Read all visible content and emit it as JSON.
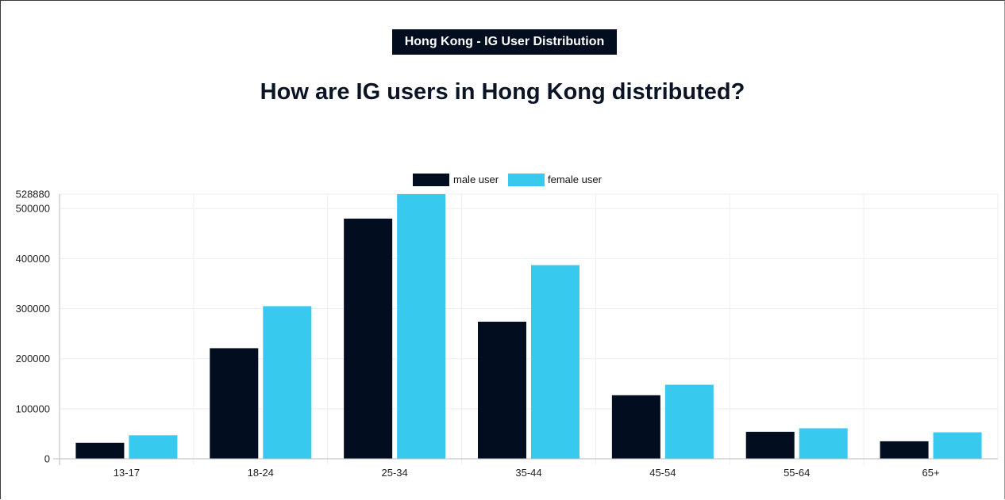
{
  "header": {
    "badge": "Hong Kong - IG User Distribution",
    "title": "How are IG users in Hong Kong distributed?"
  },
  "chart_data": {
    "type": "bar",
    "categories": [
      "13-17",
      "18-24",
      "25-34",
      "35-44",
      "45-54",
      "55-64",
      "65+"
    ],
    "series": [
      {
        "name": "male user",
        "values": [
          32000,
          221000,
          480000,
          274000,
          127000,
          54000,
          35000
        ]
      },
      {
        "name": "female user",
        "values": [
          47000,
          305000,
          528880,
          387000,
          148000,
          61000,
          53000
        ]
      }
    ],
    "yticks": [
      0,
      100000,
      200000,
      300000,
      400000,
      500000,
      528880
    ],
    "ylim": [
      0,
      528880
    ],
    "grid": true,
    "legend": "top-center",
    "colors": {
      "male": "#020e1f",
      "female": "#38c9ef"
    }
  }
}
